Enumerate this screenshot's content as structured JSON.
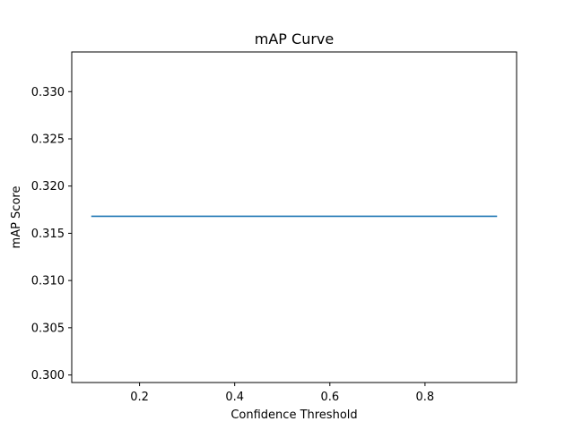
{
  "chart_data": {
    "type": "line",
    "title": "mAP Curve",
    "xlabel": "Confidence Threshold",
    "ylabel": "mAP Score",
    "xlim": [
      0.0575,
      0.9925
    ],
    "ylim": [
      0.2992,
      0.3342
    ],
    "xticks": [
      0.2,
      0.4,
      0.6,
      0.8
    ],
    "xtick_labels": [
      "0.2",
      "0.4",
      "0.6",
      "0.8"
    ],
    "yticks": [
      0.3,
      0.305,
      0.31,
      0.315,
      0.32,
      0.325,
      0.33
    ],
    "ytick_labels": [
      "0.300",
      "0.305",
      "0.310",
      "0.315",
      "0.320",
      "0.325",
      "0.330"
    ],
    "grid": false,
    "series": [
      {
        "color": "#1f77b4",
        "x": [
          0.1,
          0.15,
          0.2,
          0.25,
          0.3,
          0.35,
          0.4,
          0.45,
          0.5,
          0.55,
          0.6,
          0.65,
          0.7,
          0.75,
          0.8,
          0.85,
          0.9,
          0.95
        ],
        "y": [
          0.3168,
          0.3168,
          0.3168,
          0.3168,
          0.3168,
          0.3168,
          0.3168,
          0.3168,
          0.3168,
          0.3168,
          0.3168,
          0.3168,
          0.3168,
          0.3168,
          0.3168,
          0.3168,
          0.3168,
          0.3168
        ]
      }
    ]
  }
}
